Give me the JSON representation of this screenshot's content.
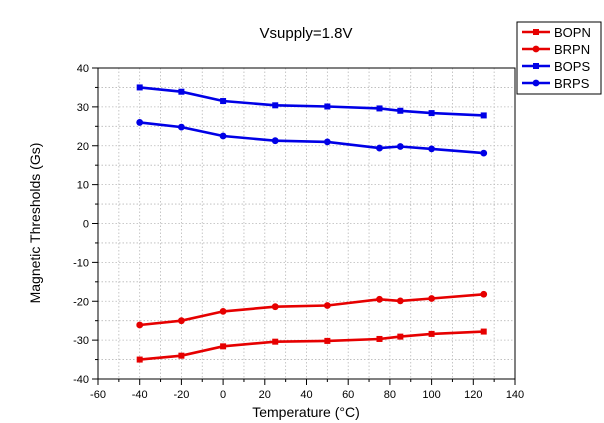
{
  "chart_data": {
    "type": "line",
    "title": "Vsupply=1.8V",
    "xlabel": "Temperature (°C)",
    "ylabel": "Magnetic Thresholds (Gs)",
    "xlim": [
      -60,
      140
    ],
    "ylim": [
      -40,
      40
    ],
    "xticks": [
      -60,
      -40,
      -20,
      0,
      20,
      40,
      60,
      80,
      100,
      120,
      140
    ],
    "yticks": [
      -40,
      -30,
      -20,
      -10,
      0,
      10,
      20,
      30,
      40
    ],
    "grid": "dotted, between major ticks",
    "legend_position": "top-right, outside plot",
    "x": [
      -40,
      -20,
      0,
      25,
      50,
      75,
      85,
      100,
      125
    ],
    "series": [
      {
        "name": "BOPN",
        "color": "#e60000",
        "marker": "square",
        "values": [
          -35.0,
          -34.0,
          -31.6,
          -30.4,
          -30.2,
          -29.7,
          -29.1,
          -28.4,
          -27.8
        ]
      },
      {
        "name": "BRPN",
        "color": "#e60000",
        "marker": "circle",
        "values": [
          -26.1,
          -25.0,
          -22.6,
          -21.4,
          -21.1,
          -19.5,
          -19.9,
          -19.3,
          -18.2
        ]
      },
      {
        "name": "BOPS",
        "color": "#0000e6",
        "marker": "square",
        "values": [
          35.0,
          33.9,
          31.5,
          30.4,
          30.1,
          29.6,
          29.0,
          28.4,
          27.8
        ]
      },
      {
        "name": "BRPS",
        "color": "#0000e6",
        "marker": "circle",
        "values": [
          26.0,
          24.8,
          22.5,
          21.3,
          21.0,
          19.4,
          19.8,
          19.2,
          18.1
        ]
      }
    ]
  }
}
